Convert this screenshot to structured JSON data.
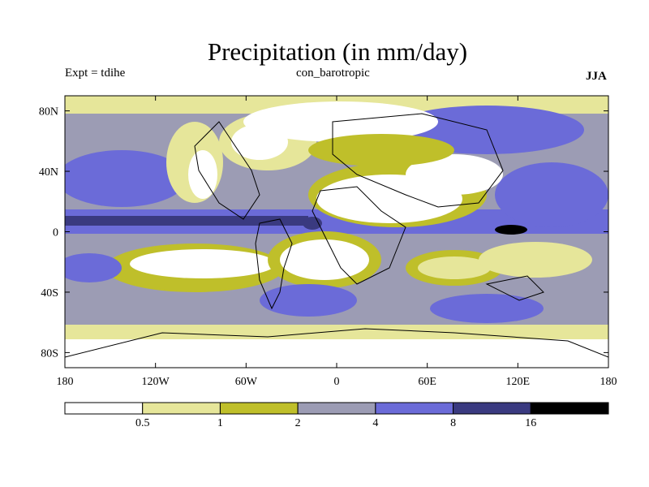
{
  "chart_data": {
    "type": "heatmap",
    "title": "Precipitation (in mm/day)",
    "left_label": "Expt = tdihe",
    "center_label": "con_barotropic",
    "right_label": "JJA",
    "x_ticks": [
      {
        "value": -180,
        "label": "180"
      },
      {
        "value": -120,
        "label": "120W"
      },
      {
        "value": -60,
        "label": "60W"
      },
      {
        "value": 0,
        "label": "0"
      },
      {
        "value": 60,
        "label": "60E"
      },
      {
        "value": 120,
        "label": "120E"
      },
      {
        "value": 180,
        "label": "180"
      }
    ],
    "y_ticks": [
      {
        "value": 80,
        "label": "80N"
      },
      {
        "value": 40,
        "label": "40N"
      },
      {
        "value": 0,
        "label": "0"
      },
      {
        "value": -40,
        "label": "40S"
      },
      {
        "value": -80,
        "label": "80S"
      }
    ],
    "xlim": [
      -180,
      180
    ],
    "ylim": [
      -90,
      90
    ],
    "colorbar": {
      "levels": [
        "0.5",
        "1",
        "2",
        "4",
        "8",
        "16"
      ],
      "colors": [
        "#ffffff",
        "#e6e69a",
        "#bfbf2a",
        "#9c9cb4",
        "#6b6bd8",
        "#3a3a80",
        "#000000"
      ]
    }
  }
}
